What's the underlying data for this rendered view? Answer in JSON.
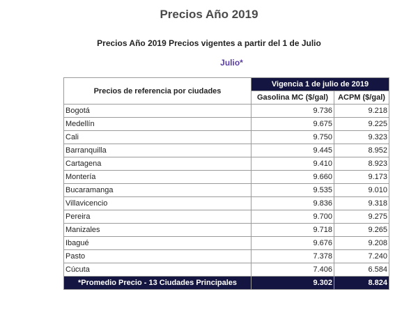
{
  "page": {
    "title": "Precios Año 2019",
    "subtitle": "Precios Año 2019 Precios vigentes a partir del 1 de Julio",
    "month": "Julio*"
  },
  "table": {
    "header_city": "Precios de referencia por ciudades",
    "header_validity": "Vigencia 1 de julio de 2019",
    "col_gasoline": "Gasolina MC ($/gal)",
    "col_acpm": "ACPM ($/gal)",
    "rows": [
      {
        "city": "Bogotá",
        "gasoline": "9.736",
        "acpm": "9.218"
      },
      {
        "city": "Medellín",
        "gasoline": "9.675",
        "acpm": "9.225"
      },
      {
        "city": "Cali",
        "gasoline": "9.750",
        "acpm": "9.323"
      },
      {
        "city": "Barranquilla",
        "gasoline": "9.445",
        "acpm": "8.952"
      },
      {
        "city": "Cartagena",
        "gasoline": "9.410",
        "acpm": "8.923"
      },
      {
        "city": "Montería",
        "gasoline": "9.660",
        "acpm": "9.173"
      },
      {
        "city": "Bucaramanga",
        "gasoline": "9.535",
        "acpm": "9.010"
      },
      {
        "city": "Villavicencio",
        "gasoline": "9.836",
        "acpm": "9.318"
      },
      {
        "city": "Pereira",
        "gasoline": "9.700",
        "acpm": "9.275"
      },
      {
        "city": "Manizales",
        "gasoline": "9.718",
        "acpm": "9.265"
      },
      {
        "city": "Ibagué",
        "gasoline": "9.676",
        "acpm": "9.208"
      },
      {
        "city": "Pasto",
        "gasoline": "7.378",
        "acpm": "7.240"
      },
      {
        "city": "Cúcuta",
        "gasoline": "7.406",
        "acpm": "6.584"
      }
    ],
    "footer": {
      "label": "*Promedio Precio - 13 Ciudades Principales",
      "gasoline": "9.302",
      "acpm": "8.824"
    }
  },
  "colors": {
    "header_dark": "#141540",
    "month_accent": "#5a3fa0"
  }
}
